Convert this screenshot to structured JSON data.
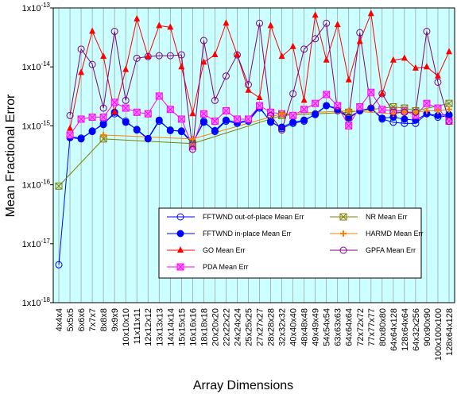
{
  "chart_data": {
    "type": "line",
    "ylabel": "Mean Fractional Error",
    "xlabel": "Array Dimensions",
    "log_y": true,
    "ylim": [
      1e-18,
      1e-13
    ],
    "yticks": [
      {
        "value": 1e-18,
        "label": "1x10-18"
      },
      {
        "value": 1e-17,
        "label": "1x10-17"
      },
      {
        "value": 1e-16,
        "label": "1x10-16"
      },
      {
        "value": 1e-15,
        "label": "1x10-15"
      },
      {
        "value": 1e-14,
        "label": "1x10-14"
      },
      {
        "value": 1e-13,
        "label": "1x10-13"
      }
    ],
    "categories": [
      "4x4x4",
      "5x5x5",
      "6x6x6",
      "7x7x7",
      "8x8x8",
      "9x9x9",
      "10x10x10",
      "11x11x11",
      "12x12x12",
      "13x13x13",
      "14x14x14",
      "15x15x15",
      "16x16x16",
      "18x18x18",
      "20x20x20",
      "22x22x22",
      "24x24x24",
      "25x25x25",
      "27x27x27",
      "28x28x28",
      "32x32x32",
      "40x40x40",
      "48x48x48",
      "49x49x49",
      "54x54x54",
      "63x63x63",
      "64x64x64",
      "72x72x72",
      "77x77x77",
      "80x80x80",
      "64x64x128",
      "128x64x64",
      "64x32x256",
      "90x90x90",
      "100x100x100",
      "128x64x128"
    ],
    "background": "#ccffff",
    "grid": true,
    "series": [
      {
        "name": "FFTWND out-of-place Mean Err",
        "color": "#0000ff",
        "marker": "circle-open",
        "values": [
          4.4e-18,
          6.5e-16,
          6.2e-16,
          8e-16,
          1.1e-15,
          1.6e-15,
          1.2e-15,
          8.5e-16,
          6e-16,
          1.2e-15,
          8.5e-16,
          8e-16,
          5e-16,
          1.2e-15,
          8e-16,
          1.2e-15,
          1.1e-15,
          1.2e-15,
          2e-15,
          1.2e-15,
          9e-16,
          1.1e-15,
          1.2e-15,
          1.6e-15,
          2.2e-15,
          2e-15,
          1.4e-15,
          1.8e-15,
          2e-15,
          1.3e-15,
          1.15e-15,
          1.1e-15,
          1.1e-15,
          1.6e-15,
          1.4e-15,
          1.5e-15
        ]
      },
      {
        "name": "FFTWND in-place Mean Err",
        "color": "#0000ff",
        "marker": "circle-filled",
        "values": [
          null,
          6.3e-16,
          6e-16,
          8.2e-16,
          1.05e-15,
          1.7e-15,
          1.15e-15,
          8.7e-16,
          6.1e-16,
          1.25e-15,
          8.3e-16,
          8.2e-16,
          5.2e-16,
          1.15e-15,
          8.3e-16,
          1.25e-15,
          1.15e-15,
          1.25e-15,
          2.1e-15,
          1.15e-15,
          9.5e-16,
          1.15e-15,
          1.25e-15,
          1.55e-15,
          2.2e-15,
          1.9e-15,
          1.35e-15,
          1.8e-15,
          2e-15,
          1.35e-15,
          1.4e-15,
          1.3e-15,
          1.25e-15,
          1.6e-15,
          1.5e-15,
          1.55e-15
        ]
      },
      {
        "name": "GO Mean Err",
        "color": "#ff0000",
        "marker": "triangle",
        "values": [
          null,
          9e-16,
          8e-15,
          4e-14,
          1.5e-14,
          1.7e-15,
          9e-15,
          6.5e-14,
          1.5e-14,
          5e-14,
          4.7e-14,
          1e-14,
          1.6e-15,
          1.2e-14,
          1.6e-14,
          5.5e-14,
          1.6e-14,
          4e-15,
          3e-15,
          5e-14,
          1.5e-14,
          2.2e-14,
          2.7e-15,
          7.5e-14,
          1.3e-14,
          5.2e-14,
          6e-15,
          2.7e-14,
          8e-14,
          3.5e-15,
          1.3e-14,
          1.4e-14,
          9.5e-15,
          1e-14,
          7e-15,
          1.8e-14
        ]
      },
      {
        "name": "PDA Mean Err",
        "color": "#ff00ff",
        "marker": "square-x",
        "values": [
          null,
          7e-16,
          1.3e-15,
          1.4e-15,
          1.4e-15,
          2.5e-15,
          2e-15,
          1.7e-15,
          1.6e-15,
          3.2e-15,
          1.9e-15,
          1.3e-15,
          4.5e-16,
          1.6e-15,
          1.2e-15,
          1.8e-15,
          1.3e-15,
          1.3e-15,
          2.2e-15,
          1.7e-15,
          1.6e-15,
          1.5e-15,
          1.9e-15,
          2.4e-15,
          3.4e-15,
          2.2e-15,
          1e-15,
          2.1e-15,
          3.7e-15,
          1.9e-15,
          1.8e-15,
          1.8e-15,
          1.5e-15,
          2.4e-15,
          2e-15,
          1.2e-15
        ]
      },
      {
        "name": "NR Mean Err",
        "color": "#808000",
        "marker": "square-x",
        "values": [
          9.5e-17,
          null,
          null,
          null,
          6e-16,
          null,
          null,
          null,
          null,
          null,
          null,
          null,
          5e-16,
          null,
          null,
          null,
          null,
          null,
          null,
          null,
          1.5e-15,
          null,
          null,
          null,
          null,
          null,
          1.7e-15,
          null,
          null,
          null,
          2.1e-15,
          2e-15,
          1.8e-15,
          null,
          null,
          2.4e-15
        ]
      },
      {
        "name": "HARMD Mean Err",
        "color": "#ff8000",
        "marker": "plus",
        "values": [
          null,
          null,
          null,
          null,
          7e-16,
          null,
          null,
          null,
          null,
          null,
          null,
          null,
          6e-16,
          null,
          null,
          null,
          null,
          null,
          null,
          null,
          1.6e-15,
          null,
          null,
          null,
          null,
          null,
          1.8e-15,
          null,
          null,
          null,
          1.6e-15,
          1.7e-15,
          1.7e-15,
          1.8e-15,
          1.8e-15,
          1.9e-15
        ]
      },
      {
        "name": "GPFA Mean Err",
        "color": "#800080",
        "marker": "circle-open",
        "values": [
          null,
          1.5e-15,
          2e-14,
          1.1e-14,
          2e-15,
          4e-14,
          2.7e-15,
          1.4e-14,
          1.5e-14,
          1.55e-14,
          1.55e-14,
          1.6e-14,
          4e-16,
          2.8e-14,
          2.7e-15,
          7e-15,
          1.6e-14,
          5e-15,
          5.5e-14,
          1.5e-15,
          8.5e-16,
          3.5e-15,
          2e-14,
          3e-14,
          5.5e-14,
          1.8e-15,
          1.4e-15,
          3.8e-14,
          2e-15,
          3.5e-15,
          1.7e-15,
          1.7e-15,
          1.7e-15,
          4e-14,
          5.5e-15,
          1.2e-15
        ]
      }
    ]
  }
}
